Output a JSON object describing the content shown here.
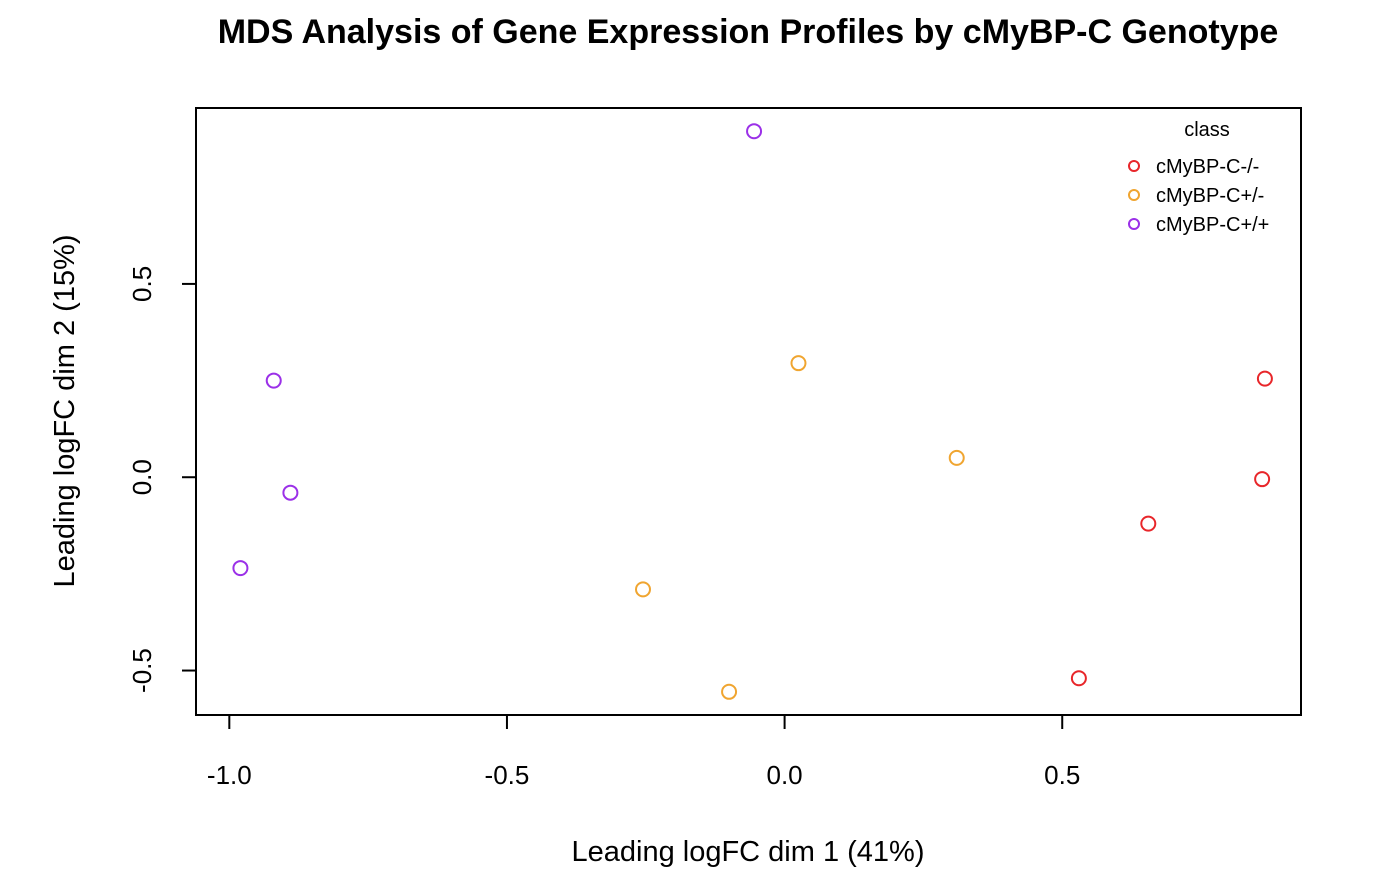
{
  "chart_data": {
    "type": "scatter",
    "title": "MDS Analysis of Gene Expression Profiles by cMyBP-C Genotype",
    "xlabel": "Leading logFC dim 1 (41%)",
    "ylabel": "Leading logFC dim 2 (15%)",
    "xlim": [
      -1.06,
      0.93
    ],
    "ylim": [
      -0.615,
      0.955
    ],
    "x_ticks": [
      -1.0,
      -0.5,
      0.0,
      0.5
    ],
    "x_tick_labels": [
      "-1.0",
      "-0.5",
      "0.0",
      "0.5"
    ],
    "y_ticks": [
      -0.5,
      0.0,
      0.5
    ],
    "y_tick_labels": [
      "-0.5",
      "0.0",
      "0.5"
    ],
    "grid": false,
    "legend": {
      "title": "class",
      "position": "top-right"
    },
    "series": [
      {
        "name": "cMyBP-C-/-",
        "color": "#e8262a",
        "points": [
          [
            0.865,
            0.255
          ],
          [
            0.86,
            -0.005
          ],
          [
            0.655,
            -0.12
          ],
          [
            0.53,
            -0.52
          ]
        ]
      },
      {
        "name": "cMyBP-C+/-",
        "color": "#f0a530",
        "points": [
          [
            0.025,
            0.295
          ],
          [
            0.31,
            0.05
          ],
          [
            -0.255,
            -0.29
          ],
          [
            -0.1,
            -0.555
          ]
        ]
      },
      {
        "name": "cMyBP-C+/+",
        "color": "#9b30e8",
        "points": [
          [
            -0.055,
            0.895
          ],
          [
            -0.92,
            0.25
          ],
          [
            -0.89,
            -0.04
          ],
          [
            -0.98,
            -0.235
          ]
        ]
      }
    ]
  }
}
